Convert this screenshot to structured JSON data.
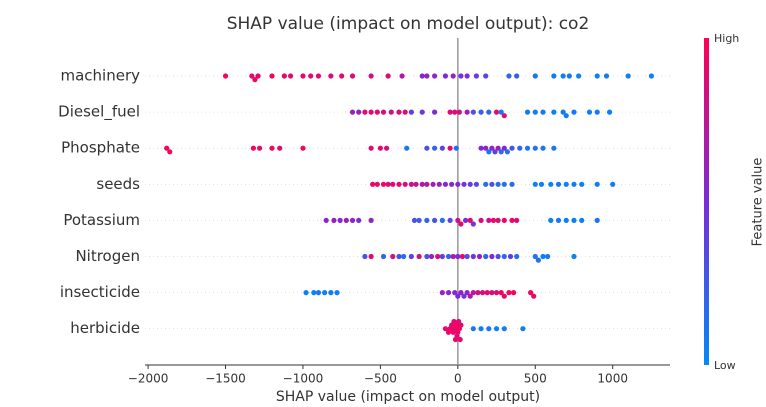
{
  "chart_data": {
    "type": "beeswarm",
    "title": "SHAP value (impact on model output): co2",
    "x_label": "SHAP value (impact on model output)",
    "xlim": [
      -2020,
      1370
    ],
    "xticks": [
      {
        "value": -2000,
        "label": "−2000"
      },
      {
        "value": -1500,
        "label": "−1500"
      },
      {
        "value": -1000,
        "label": "−1000"
      },
      {
        "value": -500,
        "label": "−500"
      },
      0,
      500,
      1000
    ],
    "colorbar": {
      "label": "Feature value",
      "low": "Low",
      "high": "High",
      "colors": [
        "#008afb",
        "#7c2bd7",
        "#ff0052"
      ]
    },
    "series": [
      {
        "name": "machinery",
        "values": [
          -1500,
          -1330,
          -1310,
          -1290,
          -1200,
          -1120,
          -1080,
          -1000,
          -950,
          -900,
          -820,
          -750,
          -680,
          -560,
          -450,
          -360,
          -230,
          -200,
          -150,
          -80,
          -30,
          20,
          60,
          120,
          180,
          330,
          380,
          500,
          620,
          680,
          720,
          780,
          900,
          960,
          1100,
          1250
        ],
        "feature_values": [
          0.95,
          0.9,
          0.92,
          0.9,
          0.95,
          0.9,
          0.88,
          0.9,
          0.85,
          0.9,
          0.85,
          0.9,
          0.85,
          0.8,
          0.85,
          0.7,
          0.5,
          0.6,
          0.55,
          0.5,
          0.6,
          0.45,
          0.5,
          0.4,
          0.35,
          0.2,
          0.25,
          0.1,
          0.08,
          0.05,
          0.1,
          0.05,
          0.05,
          0.08,
          0.05,
          0.05
        ]
      },
      {
        "name": "Diesel_fuel",
        "values": [
          -680,
          -640,
          -600,
          -560,
          -520,
          -480,
          -430,
          -380,
          -340,
          -300,
          -230,
          -150,
          -50,
          -20,
          10,
          60,
          100,
          150,
          200,
          250,
          280,
          300,
          450,
          500,
          550,
          620,
          680,
          700,
          750,
          850,
          900,
          980
        ],
        "feature_values": [
          0.6,
          0.55,
          0.9,
          0.85,
          0.9,
          0.85,
          0.8,
          0.9,
          0.85,
          0.4,
          0.45,
          0.5,
          0.85,
          0.9,
          0.8,
          0.7,
          0.3,
          0.25,
          0.2,
          0.9,
          0.1,
          0.85,
          0.1,
          0.05,
          0.1,
          0.05,
          0.08,
          0.05,
          0.1,
          0.05,
          0.08,
          0.05
        ]
      },
      {
        "name": "Phosphate",
        "values": [
          -1880,
          -1860,
          -1320,
          -1280,
          -1200,
          -1150,
          -1000,
          -560,
          -500,
          -460,
          -330,
          -200,
          -150,
          -100,
          -50,
          -10,
          150,
          180,
          200,
          220,
          240,
          260,
          280,
          300,
          320,
          350,
          400,
          450,
          500,
          550,
          620
        ],
        "feature_values": [
          0.95,
          0.95,
          0.95,
          0.9,
          0.95,
          0.9,
          0.95,
          0.85,
          0.9,
          0.85,
          0.1,
          0.3,
          0.2,
          0.35,
          0.9,
          0.15,
          0.5,
          0.6,
          0.1,
          0.55,
          0.4,
          0.6,
          0.2,
          0.5,
          0.15,
          0.3,
          0.2,
          0.1,
          0.15,
          0.1,
          0.1
        ]
      },
      {
        "name": "seeds",
        "values": [
          -550,
          -520,
          -480,
          -450,
          -420,
          -380,
          -340,
          -300,
          -270,
          -230,
          -200,
          -160,
          -120,
          -80,
          -40,
          0,
          40,
          80,
          120,
          180,
          220,
          260,
          300,
          350,
          500,
          540,
          600,
          650,
          700,
          750,
          800,
          900,
          1000
        ],
        "feature_values": [
          0.95,
          0.9,
          0.95,
          0.9,
          0.85,
          0.9,
          0.85,
          0.8,
          0.75,
          0.7,
          0.7,
          0.65,
          0.6,
          0.55,
          0.5,
          0.5,
          0.45,
          0.4,
          0.35,
          0.15,
          0.3,
          0.15,
          0.1,
          0.2,
          0.05,
          0.08,
          0.05,
          0.1,
          0.05,
          0.08,
          0.05,
          0.05,
          0.05
        ]
      },
      {
        "name": "Potassium",
        "values": [
          -850,
          -800,
          -760,
          -720,
          -680,
          -640,
          -560,
          -280,
          -250,
          -200,
          -150,
          -100,
          -50,
          0,
          20,
          50,
          80,
          100,
          150,
          200,
          230,
          260,
          300,
          350,
          380,
          600,
          650,
          700,
          750,
          800,
          900
        ],
        "feature_values": [
          0.55,
          0.6,
          0.55,
          0.6,
          0.55,
          0.5,
          0.6,
          0.3,
          0.25,
          0.2,
          0.3,
          0.15,
          0.35,
          0.8,
          0.85,
          0.5,
          0.9,
          0.45,
          0.85,
          0.8,
          0.9,
          0.85,
          0.9,
          0.95,
          0.85,
          0.05,
          0.1,
          0.05,
          0.08,
          0.05,
          0.1
        ]
      },
      {
        "name": "Nitrogen",
        "values": [
          -600,
          -560,
          -480,
          -420,
          -380,
          -350,
          -300,
          -250,
          -200,
          -170,
          -130,
          -100,
          -60,
          -30,
          0,
          30,
          60,
          100,
          140,
          180,
          220,
          260,
          300,
          340,
          380,
          500,
          520,
          550,
          580,
          750
        ],
        "feature_values": [
          0.3,
          0.9,
          0.2,
          0.85,
          0.3,
          0.15,
          0.4,
          0.8,
          0.3,
          0.6,
          0.85,
          0.4,
          0.2,
          0.7,
          0.5,
          0.9,
          0.3,
          0.45,
          0.6,
          0.2,
          0.5,
          0.35,
          0.2,
          0.4,
          0.15,
          0.1,
          0.15,
          0.05,
          0.1,
          0.05
        ]
      },
      {
        "name": "insecticide",
        "values": [
          -980,
          -930,
          -900,
          -860,
          -820,
          -780,
          -100,
          -60,
          -20,
          0,
          20,
          40,
          60,
          80,
          100,
          130,
          160,
          190,
          220,
          250,
          280,
          300,
          330,
          360,
          470,
          490
        ],
        "feature_values": [
          0.05,
          0.05,
          0.1,
          0.05,
          0.08,
          0.05,
          0.6,
          0.55,
          0.5,
          0.5,
          0.6,
          0.45,
          0.55,
          0.7,
          0.75,
          0.8,
          0.85,
          0.9,
          0.85,
          0.9,
          0.95,
          0.9,
          0.95,
          0.95,
          0.95,
          0.9
        ]
      },
      {
        "name": "herbicide",
        "values": [
          -80,
          -60,
          -50,
          -40,
          -30,
          -20,
          -10,
          0,
          -5,
          5,
          10,
          15,
          20,
          -15,
          -25,
          100,
          150,
          200,
          250,
          300,
          420
        ],
        "feature_values": [
          0.9,
          0.9,
          0.95,
          0.9,
          0.95,
          0.9,
          0.95,
          0.9,
          0.85,
          0.9,
          0.95,
          0.85,
          0.9,
          0.95,
          0.9,
          0.1,
          0.05,
          0.1,
          0.05,
          0.08,
          0.05
        ]
      }
    ]
  }
}
